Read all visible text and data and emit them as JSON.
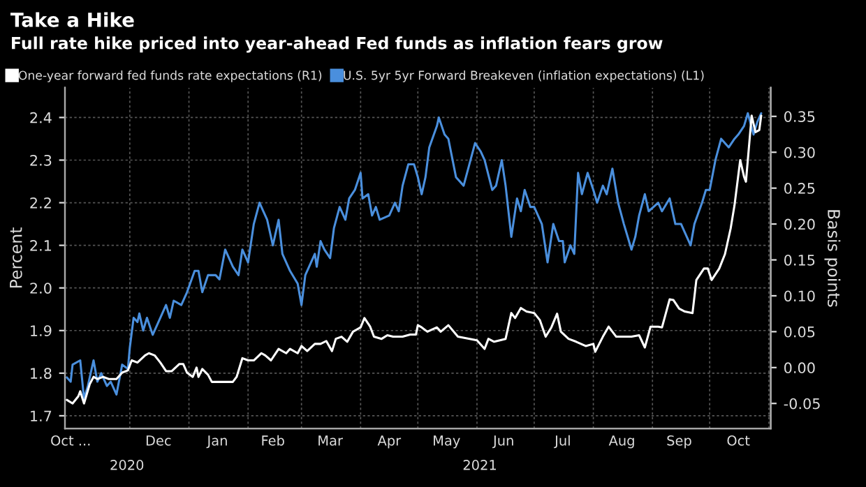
{
  "chart_data": {
    "type": "line",
    "title": "Take a Hike",
    "subtitle": "Full rate hike priced into year-ahead Fed funds as inflation fears grow",
    "ylabel": "Percent",
    "y2label": "Basis points",
    "legend": "top",
    "grid": true,
    "xlim": [
      "2020-10-28",
      "2021-11-02"
    ],
    "xticks": [
      {
        "value": "2020-10-31",
        "label": "Oct ..."
      },
      {
        "value": "2020-12-01",
        "label": null
      },
      {
        "value": "2020-12-16",
        "label": "Dec"
      },
      {
        "value": "2021-01-01",
        "label": null
      },
      {
        "value": "2021-01-16",
        "label": "Jan"
      },
      {
        "value": "2021-02-01",
        "label": null
      },
      {
        "value": "2021-02-14",
        "label": "Feb"
      },
      {
        "value": "2021-03-01",
        "label": null
      },
      {
        "value": "2021-03-16",
        "label": "Mar"
      },
      {
        "value": "2021-04-01",
        "label": null
      },
      {
        "value": "2021-04-16",
        "label": "Apr"
      },
      {
        "value": "2021-05-01",
        "label": null
      },
      {
        "value": "2021-05-16",
        "label": "May"
      },
      {
        "value": "2021-06-01",
        "label": null
      },
      {
        "value": "2021-06-15",
        "label": "Jun"
      },
      {
        "value": "2021-07-01",
        "label": null
      },
      {
        "value": "2021-07-16",
        "label": "Jul"
      },
      {
        "value": "2021-08-01",
        "label": null
      },
      {
        "value": "2021-08-16",
        "label": "Aug"
      },
      {
        "value": "2021-09-01",
        "label": null
      },
      {
        "value": "2021-09-15",
        "label": "Sep"
      },
      {
        "value": "2021-10-01",
        "label": null
      },
      {
        "value": "2021-10-16",
        "label": "Oct"
      },
      {
        "value": "2021-11-01",
        "label": null
      }
    ],
    "ylim": [
      1.67,
      2.47
    ],
    "yticks": [
      {
        "value": 1.7,
        "label": "1.7"
      },
      {
        "value": 1.8,
        "label": "1.8"
      },
      {
        "value": 1.9,
        "label": "1.9"
      },
      {
        "value": 2.0,
        "label": "2.0"
      },
      {
        "value": 2.1,
        "label": "2.1"
      },
      {
        "value": 2.2,
        "label": "2.2"
      },
      {
        "value": 2.3,
        "label": "2.3"
      },
      {
        "value": 2.4,
        "label": "2.4"
      }
    ],
    "y2lim": [
      -0.085,
      0.39
    ],
    "y2ticks": [
      {
        "value": -0.05,
        "label": "-0.05"
      },
      {
        "value": 0.0,
        "label": "0.00"
      },
      {
        "value": 0.05,
        "label": "0.05"
      },
      {
        "value": 0.1,
        "label": "0.10"
      },
      {
        "value": 0.15,
        "label": "0.15"
      },
      {
        "value": 0.2,
        "label": "0.20"
      },
      {
        "value": 0.25,
        "label": "0.25"
      },
      {
        "value": 0.3,
        "label": "0.30"
      },
      {
        "value": 0.35,
        "label": "0.35"
      }
    ],
    "annotations": [
      "2020",
      "2021"
    ],
    "series": [
      {
        "name": "One-year forward fed funds rate expectations (R1)",
        "color": "#ffffff",
        "axis": "y2",
        "x": [
          "2020-10-29",
          "2020-11-01",
          "2020-11-04",
          "2020-11-05",
          "2020-11-07",
          "2020-11-10",
          "2020-11-12",
          "2020-11-14",
          "2020-11-17",
          "2020-11-20",
          "2020-11-24",
          "2020-11-27",
          "2020-11-30",
          "2020-12-02",
          "2020-12-05",
          "2020-12-09",
          "2020-12-11",
          "2020-12-14",
          "2020-12-17",
          "2020-12-20",
          "2020-12-23",
          "2020-12-27",
          "2020-12-29",
          "2020-12-31",
          "2021-01-03",
          "2021-01-05",
          "2021-01-06",
          "2021-01-08",
          "2021-01-11",
          "2021-01-13",
          "2021-01-19",
          "2021-01-24",
          "2021-01-26",
          "2021-01-29",
          "2021-02-01",
          "2021-02-04",
          "2021-02-08",
          "2021-02-10",
          "2021-02-13",
          "2021-02-17",
          "2021-02-21",
          "2021-02-23",
          "2021-02-27",
          "2021-03-01",
          "2021-03-04",
          "2021-03-08",
          "2021-03-11",
          "2021-03-14",
          "2021-03-17",
          "2021-03-19",
          "2021-03-22",
          "2021-03-25",
          "2021-03-28",
          "2021-04-01",
          "2021-04-03",
          "2021-04-06",
          "2021-04-08",
          "2021-04-12",
          "2021-04-15",
          "2021-04-18",
          "2021-04-23",
          "2021-04-27",
          "2021-04-30",
          "2021-05-01",
          "2021-05-03",
          "2021-05-06",
          "2021-05-11",
          "2021-05-13",
          "2021-05-17",
          "2021-05-22",
          "2021-06-01",
          "2021-06-05",
          "2021-06-07",
          "2021-06-10",
          "2021-06-16",
          "2021-06-19",
          "2021-06-21",
          "2021-06-24",
          "2021-06-27",
          "2021-07-01",
          "2021-07-04",
          "2021-07-07",
          "2021-07-10",
          "2021-07-13",
          "2021-07-15",
          "2021-07-19",
          "2021-07-23",
          "2021-07-28",
          "2021-08-01",
          "2021-08-02",
          "2021-08-06",
          "2021-08-09",
          "2021-08-13",
          "2021-08-17",
          "2021-08-21",
          "2021-08-25",
          "2021-08-28",
          "2021-08-31",
          "2021-09-04",
          "2021-09-06",
          "2021-09-10",
          "2021-09-12",
          "2021-09-15",
          "2021-09-18",
          "2021-09-22",
          "2021-09-24",
          "2021-09-28",
          "2021-09-30",
          "2021-10-02",
          "2021-10-06",
          "2021-10-09",
          "2021-10-12",
          "2021-10-14",
          "2021-10-17",
          "2021-10-19",
          "2021-10-20",
          "2021-10-23",
          "2021-10-25",
          "2021-10-27",
          "2021-10-28"
        ],
        "values": [
          -0.045,
          -0.05,
          -0.04,
          -0.033,
          -0.05,
          -0.023,
          -0.013,
          -0.016,
          -0.013,
          -0.016,
          -0.016,
          -0.007,
          -0.004,
          0.01,
          0.007,
          0.017,
          0.02,
          0.017,
          0.007,
          -0.005,
          -0.005,
          0.005,
          0.005,
          -0.007,
          -0.013,
          0.0,
          -0.013,
          -0.002,
          -0.01,
          -0.02,
          -0.02,
          -0.02,
          -0.013,
          0.013,
          0.01,
          0.01,
          0.02,
          0.017,
          0.01,
          0.026,
          0.02,
          0.026,
          0.02,
          0.03,
          0.023,
          0.033,
          0.033,
          0.037,
          0.023,
          0.04,
          0.043,
          0.036,
          0.05,
          0.056,
          0.069,
          0.057,
          0.043,
          0.04,
          0.045,
          0.043,
          0.043,
          0.046,
          0.046,
          0.059,
          0.056,
          0.05,
          0.056,
          0.05,
          0.059,
          0.043,
          0.038,
          0.026,
          0.04,
          0.036,
          0.04,
          0.076,
          0.069,
          0.083,
          0.078,
          0.076,
          0.066,
          0.043,
          0.056,
          0.075,
          0.05,
          0.04,
          0.036,
          0.03,
          0.033,
          0.022,
          0.043,
          0.057,
          0.043,
          0.043,
          0.043,
          0.045,
          0.028,
          0.057,
          0.057,
          0.056,
          0.095,
          0.094,
          0.082,
          0.078,
          0.076,
          0.122,
          0.138,
          0.138,
          0.122,
          0.138,
          0.158,
          0.194,
          0.226,
          0.289,
          0.266,
          0.259,
          0.351,
          0.328,
          0.331,
          0.351
        ]
      },
      {
        "name": "U.S. 5yr 5yr Forward Breakeven (inflation expectations) (L1)",
        "color": "#4a8fdd",
        "x": [
          "2020-10-29",
          "2020-10-31",
          "2020-11-01",
          "2020-11-05",
          "2020-11-07",
          "2020-11-09",
          "2020-11-12",
          "2020-11-14",
          "2020-11-16",
          "2020-11-19",
          "2020-11-21",
          "2020-11-24",
          "2020-11-27",
          "2020-11-30",
          "2020-12-01",
          "2020-12-03",
          "2020-12-05",
          "2020-12-06",
          "2020-12-08",
          "2020-12-10",
          "2020-12-13",
          "2020-12-16",
          "2020-12-20",
          "2020-12-22",
          "2020-12-24",
          "2020-12-28",
          "2020-12-31",
          "2021-01-04",
          "2021-01-06",
          "2021-01-08",
          "2021-01-11",
          "2021-01-15",
          "2021-01-17",
          "2021-01-20",
          "2021-01-24",
          "2021-01-27",
          "2021-01-29",
          "2021-02-01",
          "2021-02-04",
          "2021-02-07",
          "2021-02-09",
          "2021-02-11",
          "2021-02-14",
          "2021-02-17",
          "2021-02-19",
          "2021-02-23",
          "2021-02-27",
          "2021-03-01",
          "2021-03-03",
          "2021-03-06",
          "2021-03-08",
          "2021-03-09",
          "2021-03-11",
          "2021-03-13",
          "2021-03-16",
          "2021-03-18",
          "2021-03-21",
          "2021-03-24",
          "2021-03-26",
          "2021-03-29",
          "2021-04-01",
          "2021-04-02",
          "2021-04-05",
          "2021-04-07",
          "2021-04-09",
          "2021-04-11",
          "2021-04-16",
          "2021-04-19",
          "2021-04-21",
          "2021-04-23",
          "2021-04-26",
          "2021-04-29",
          "2021-05-01",
          "2021-05-03",
          "2021-05-05",
          "2021-05-07",
          "2021-05-11",
          "2021-05-12",
          "2021-05-15",
          "2021-05-17",
          "2021-05-21",
          "2021-05-25",
          "2021-05-31",
          "2021-06-03",
          "2021-06-05",
          "2021-06-09",
          "2021-06-11",
          "2021-06-14",
          "2021-06-16",
          "2021-06-19",
          "2021-06-22",
          "2021-06-24",
          "2021-06-26",
          "2021-06-29",
          "2021-07-01",
          "2021-07-05",
          "2021-07-08",
          "2021-07-11",
          "2021-07-14",
          "2021-07-16",
          "2021-07-17",
          "2021-07-20",
          "2021-07-22",
          "2021-07-24",
          "2021-07-26",
          "2021-07-29",
          "2021-08-01",
          "2021-08-03",
          "2021-08-06",
          "2021-08-08",
          "2021-08-11",
          "2021-08-14",
          "2021-08-17",
          "2021-08-21",
          "2021-08-23",
          "2021-08-25",
          "2021-08-28",
          "2021-08-30",
          "2021-09-04",
          "2021-09-06",
          "2021-09-10",
          "2021-09-13",
          "2021-09-16",
          "2021-09-18",
          "2021-09-21",
          "2021-09-23",
          "2021-09-27",
          "2021-09-29",
          "2021-10-01",
          "2021-10-04",
          "2021-10-07",
          "2021-10-11",
          "2021-10-14",
          "2021-10-16",
          "2021-10-19",
          "2021-10-21",
          "2021-10-24",
          "2021-10-26",
          "2021-10-28"
        ],
        "values": [
          1.79,
          1.78,
          1.82,
          1.83,
          1.74,
          1.77,
          1.83,
          1.78,
          1.8,
          1.77,
          1.78,
          1.75,
          1.82,
          1.81,
          1.86,
          1.93,
          1.92,
          1.94,
          1.9,
          1.93,
          1.89,
          1.92,
          1.96,
          1.93,
          1.97,
          1.96,
          1.99,
          2.04,
          2.04,
          1.99,
          2.03,
          2.03,
          2.02,
          2.09,
          2.05,
          2.03,
          2.09,
          2.06,
          2.15,
          2.2,
          2.18,
          2.16,
          2.1,
          2.16,
          2.08,
          2.04,
          2.01,
          1.96,
          2.03,
          2.06,
          2.08,
          2.05,
          2.11,
          2.09,
          2.07,
          2.14,
          2.19,
          2.16,
          2.21,
          2.23,
          2.27,
          2.21,
          2.22,
          2.17,
          2.19,
          2.16,
          2.17,
          2.2,
          2.18,
          2.24,
          2.29,
          2.29,
          2.26,
          2.22,
          2.26,
          2.33,
          2.38,
          2.4,
          2.36,
          2.35,
          2.26,
          2.24,
          2.34,
          2.32,
          2.3,
          2.23,
          2.24,
          2.3,
          2.24,
          2.12,
          2.21,
          2.18,
          2.23,
          2.19,
          2.19,
          2.15,
          2.06,
          2.15,
          2.11,
          2.11,
          2.06,
          2.1,
          2.08,
          2.27,
          2.22,
          2.27,
          2.23,
          2.2,
          2.24,
          2.22,
          2.28,
          2.2,
          2.15,
          2.09,
          2.12,
          2.17,
          2.22,
          2.18,
          2.2,
          2.18,
          2.21,
          2.15,
          2.15,
          2.13,
          2.1,
          2.15,
          2.2,
          2.23,
          2.23,
          2.3,
          2.35,
          2.33,
          2.35,
          2.36,
          2.38,
          2.41,
          2.36,
          2.39,
          2.41
        ]
      }
    ]
  }
}
